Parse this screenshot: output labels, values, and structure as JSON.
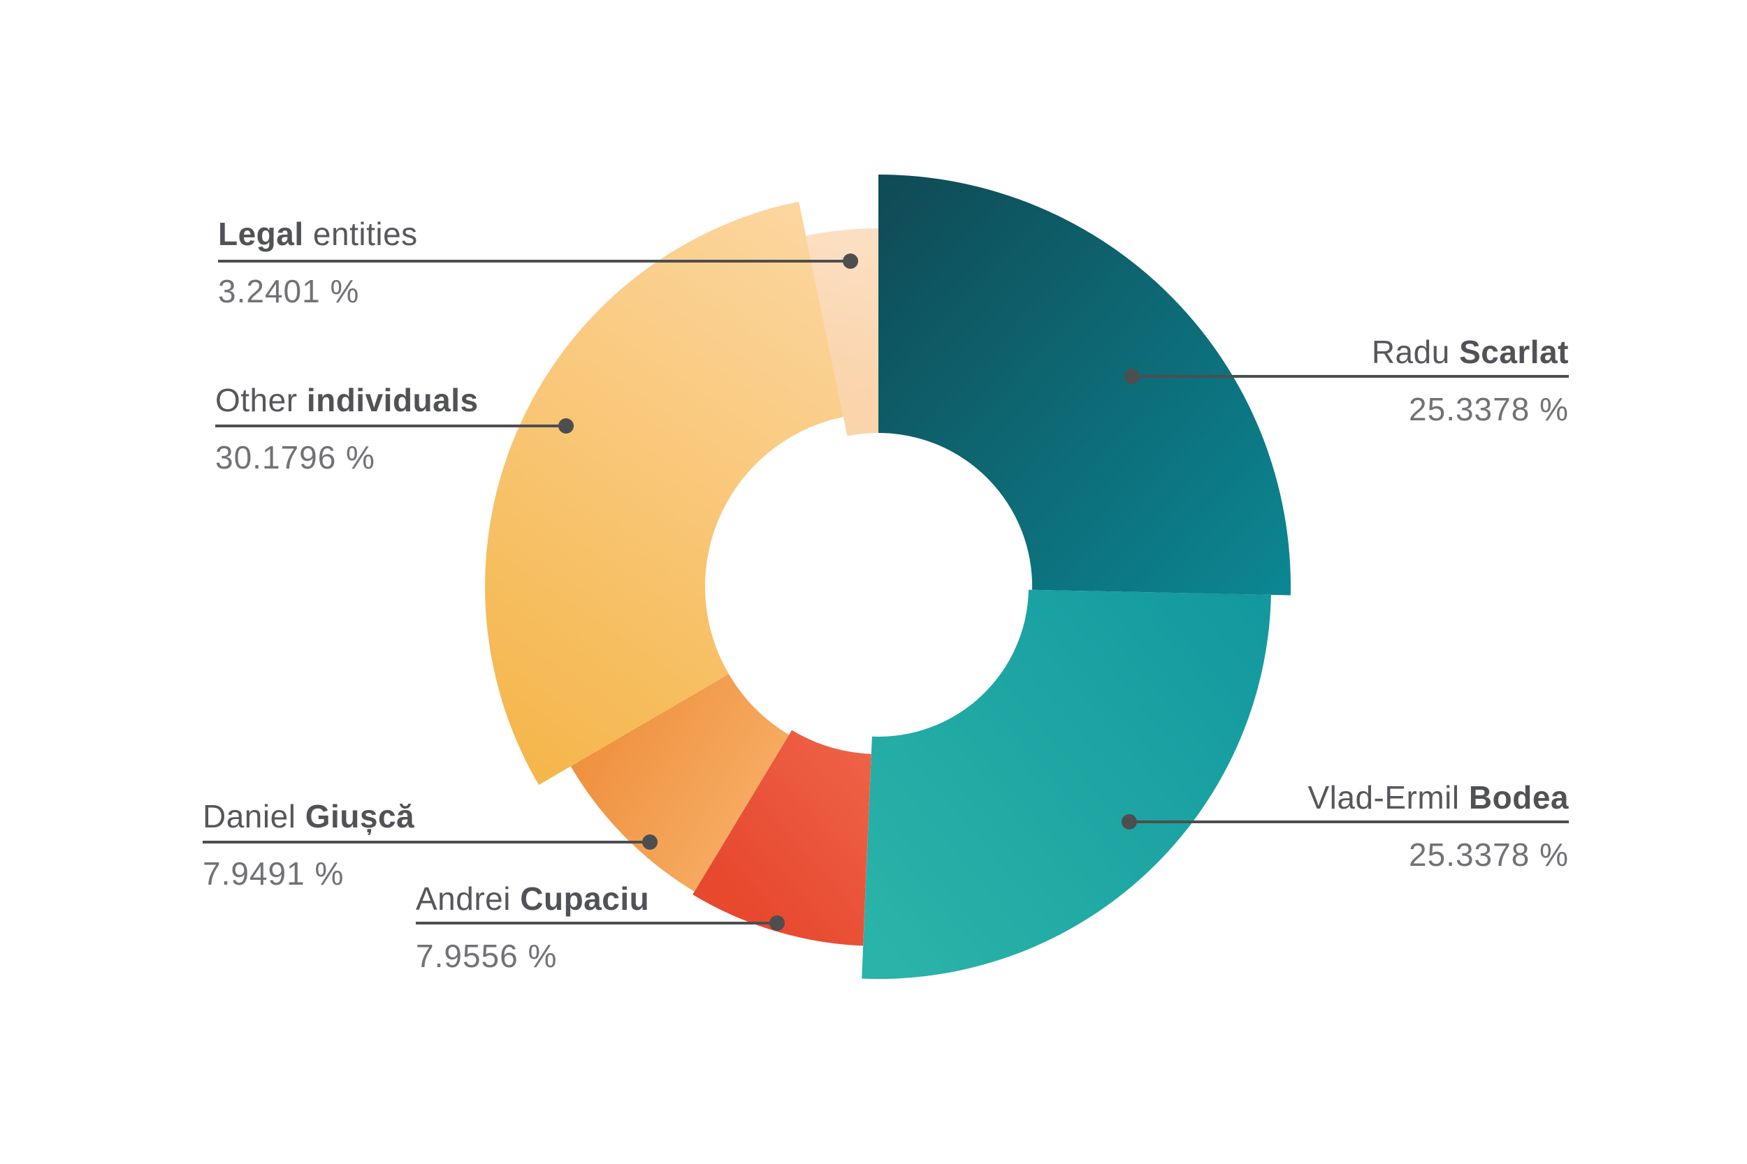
{
  "chart_data": {
    "type": "pie",
    "subtype": "donut-irregular",
    "title": "",
    "unit": "%",
    "direction": "clockwise",
    "start_angle_deg": 0,
    "legend_position": "callouts",
    "background": "#ffffff",
    "slices": [
      {
        "label": "Radu Scarlat",
        "label_regular": "Radu ",
        "label_bold": "Scarlat",
        "bold_first": false,
        "value": 25.3378,
        "display": "25.3378 %",
        "color_from": "#0f4c57",
        "color_to": "#0b8894"
      },
      {
        "label": "Vlad-Ermil Bodea",
        "label_regular": "Vlad-Ermil ",
        "label_bold": "Bodea",
        "bold_first": false,
        "value": 25.3378,
        "display": "25.3378 %",
        "color_from": "#2ab3a8",
        "color_to": "#11979e"
      },
      {
        "label": "Andrei Cupaciu",
        "label_regular": "Andrei ",
        "label_bold": "Cupaciu",
        "bold_first": false,
        "value": 7.9556,
        "display": "7.9556 %",
        "color_from": "#e7482e",
        "color_to": "#ee6449"
      },
      {
        "label": "Daniel Giușcă",
        "label_regular": "Daniel ",
        "label_bold": "Giușcă",
        "bold_first": false,
        "value": 7.9491,
        "display": "7.9491 %",
        "color_from": "#ef9140",
        "color_to": "#f6aa60"
      },
      {
        "label": "Other individuals",
        "label_regular": "Other ",
        "label_bold": "individuals",
        "bold_first": false,
        "value": 30.1796,
        "display": "30.1796 %",
        "color_from": "#f5b64b",
        "color_to": "#fcd7a2"
      },
      {
        "label": "Legal entities",
        "label_regular": " entities",
        "label_bold": "Legal",
        "bold_first": true,
        "value": 3.2401,
        "display": "3.2401 %",
        "color_from": "#fad4ab",
        "color_to": "#fcdfc3"
      }
    ]
  },
  "colors": {
    "leader_line": "#4d4e50",
    "label_text": "#56575b",
    "value_text": "#717275",
    "background": "#ffffff"
  }
}
